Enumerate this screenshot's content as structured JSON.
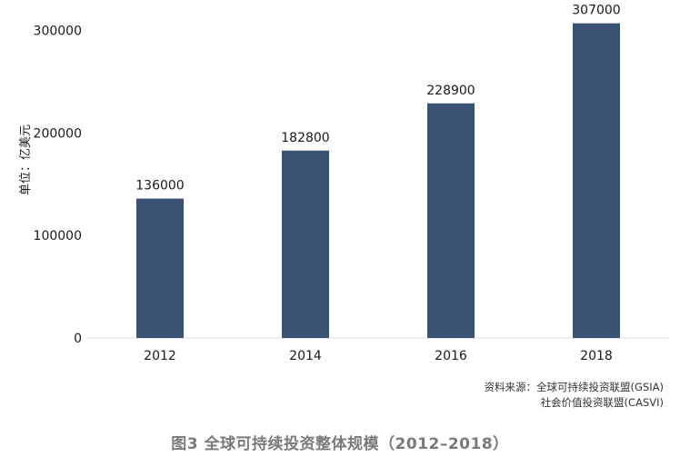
{
  "chart_data": {
    "type": "bar",
    "categories": [
      "2012",
      "2014",
      "2016",
      "2018"
    ],
    "values": [
      136000,
      182800,
      228900,
      307000
    ],
    "data_labels": [
      "136000",
      "182800",
      "228900",
      "307000"
    ],
    "ylabel": "单位：亿美元",
    "yticks": [
      "0",
      "100000",
      "200000",
      "300000"
    ],
    "ylim": [
      0,
      312000
    ],
    "grid": false,
    "bar_color": "#3b5275"
  },
  "source": {
    "line1": "资料来源：全球可持续投资联盟(GSIA)",
    "line2": "社会价值投资联盟(CASVI)"
  },
  "caption": "图3  全球可持续投资整体规模（2012–2018）"
}
